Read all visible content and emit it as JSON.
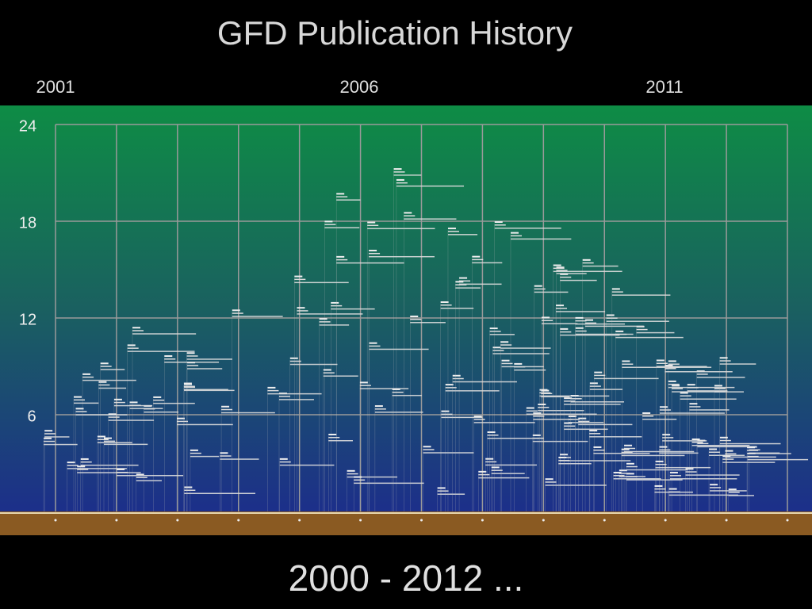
{
  "slide": {
    "title": "GFD Publication History",
    "year_labels": [
      "2001",
      "2006",
      "2011"
    ],
    "axis_labels": [
      "24",
      "18",
      "12",
      "6"
    ],
    "footer": "2000 - 2012 ..."
  }
}
